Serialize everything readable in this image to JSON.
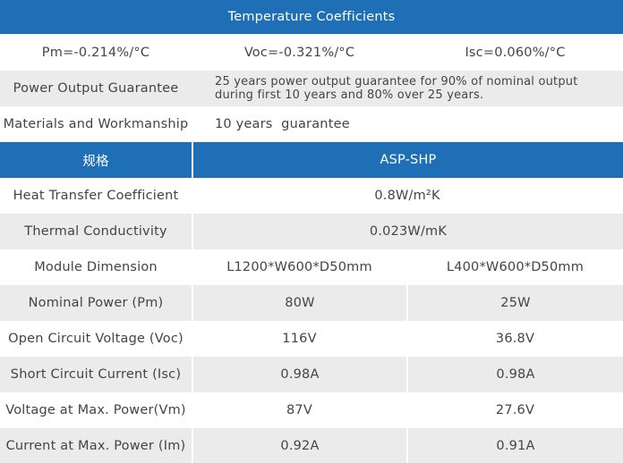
{
  "temperature_coefficients": {
    "title": "Temperature Coefficients",
    "pm": "Pm=-0.214%/°C",
    "voc": "Voc=-0.321%/°C",
    "isc": "Isc=0.060%/°C"
  },
  "guarantee": {
    "power_label": "Power Output Guarantee",
    "power_line1": "25 years power output guarantee for 90% of nominal output",
    "power_line2": "during first 10 years and 80% over 25 years.",
    "materials_label": "Materials and Workmanship",
    "materials_value": "10 years  guarantee"
  },
  "spec_table": {
    "header_label": "规格",
    "header_model": "ASP-SHP",
    "heat_transfer": {
      "label": "Heat Transfer Coefficient",
      "value": "0.8W/m²K"
    },
    "thermal_conductivity": {
      "label": "Thermal Conductivity",
      "value": "0.023W/mK"
    },
    "rows": [
      {
        "label": "Module Dimension",
        "a": "L1200*W600*D50mm",
        "b": "L400*W600*D50mm"
      },
      {
        "label": "Nominal Power (Pm)",
        "a": "80W",
        "b": "25W"
      },
      {
        "label": "Open Circuit Voltage (Voc)",
        "a": "116V",
        "b": "36.8V"
      },
      {
        "label": "Short Circuit Current (Isc)",
        "a": "0.98A",
        "b": "0.98A"
      },
      {
        "label": "Voltage at Max. Power(Vm)",
        "a": "87V",
        "b": "27.6V"
      },
      {
        "label": "Current at Max. Power (Im)",
        "a": "0.92A",
        "b": "0.91A"
      }
    ]
  },
  "colors": {
    "header": "#1f6fb6",
    "row_gray": "#ebebeb",
    "text": "#444444"
  }
}
